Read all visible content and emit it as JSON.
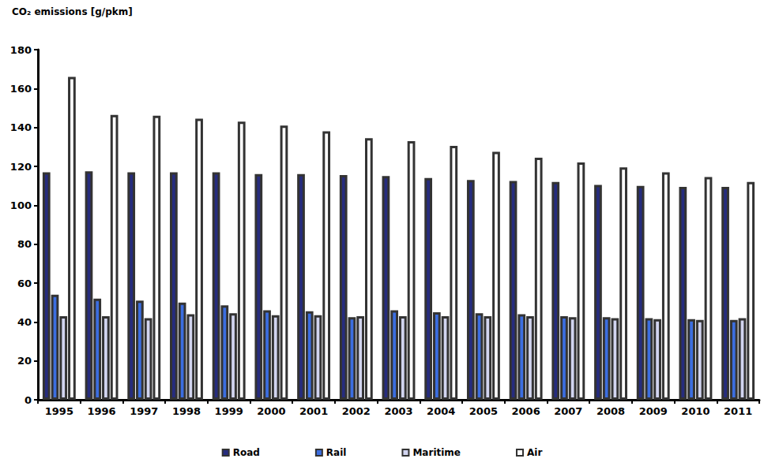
{
  "chart_data": {
    "type": "bar",
    "title": "CO₂ emissions [g/pkm]",
    "categories": [
      "1995",
      "1996",
      "1997",
      "1998",
      "1999",
      "2000",
      "2001",
      "2002",
      "2003",
      "2004",
      "2005",
      "2006",
      "2007",
      "2008",
      "2009",
      "2010",
      "2011"
    ],
    "series": [
      {
        "name": "Road",
        "color": "#262c7e",
        "values": [
          117,
          117.5,
          117,
          117,
          117,
          116,
          116,
          115.5,
          115,
          114,
          113,
          112.5,
          112,
          110.5,
          110,
          109.5,
          109.5
        ]
      },
      {
        "name": "Rail",
        "color": "#3c6ee0",
        "values": [
          54,
          52,
          51,
          50,
          48.5,
          46,
          45.5,
          42.5,
          46,
          45,
          44.5,
          44,
          43,
          42.5,
          42,
          41.5,
          41
        ]
      },
      {
        "name": "Maritime",
        "color": "#d2d5f0",
        "values": [
          43,
          43,
          42,
          44,
          44.5,
          43.5,
          43.5,
          43,
          43,
          43,
          43,
          43,
          42.5,
          42,
          41.5,
          41,
          42
        ]
      },
      {
        "name": "Air",
        "color": "#ffffff",
        "values": [
          166,
          146.5,
          146,
          144.5,
          143,
          141,
          138,
          134.5,
          133,
          130.5,
          127.5,
          124.5,
          122,
          119.5,
          117,
          114.5,
          112
        ]
      }
    ],
    "ylim": [
      0,
      180
    ],
    "yticks": [
      0,
      20,
      40,
      60,
      80,
      100,
      120,
      140,
      160,
      180
    ],
    "grid": false,
    "legend": "bottom"
  }
}
